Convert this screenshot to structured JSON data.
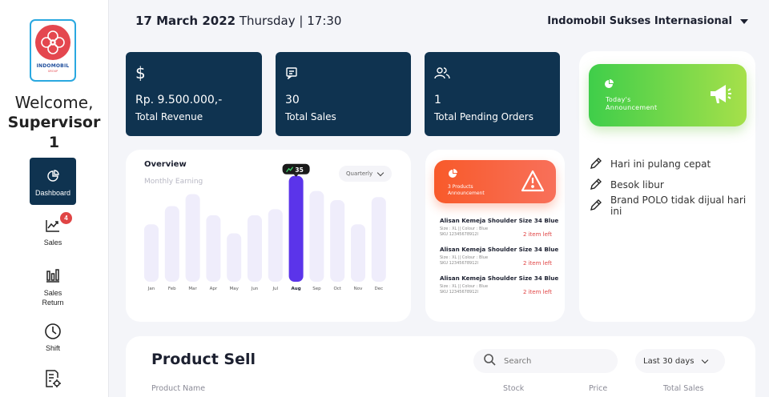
{
  "sidebar": {
    "logo": {
      "brand": "INDOMOBIL",
      "sub": "GROUP"
    },
    "welcome": "Welcome,",
    "user": "Supervisor 1",
    "items": [
      {
        "label": "Dashboard",
        "icon": "pie-chart-icon",
        "active": true
      },
      {
        "label": "Sales",
        "icon": "line-chart-icon",
        "badge": "4"
      },
      {
        "label": "Sales Return",
        "icon": "bar-chart-icon"
      },
      {
        "label": "Shift",
        "icon": "clock-icon"
      },
      {
        "label": "",
        "icon": "report-settings-icon"
      }
    ]
  },
  "header": {
    "date": "17 March 2022",
    "day": "Thursday",
    "time": "17:30",
    "company": "Indomobil Sukses Internasional"
  },
  "stats": [
    {
      "icon": "dollar-icon",
      "value": "Rp. 9.500.000,-",
      "label": "Total Revenue"
    },
    {
      "icon": "receipt-icon",
      "value": "30",
      "label": "Total Sales"
    },
    {
      "icon": "users-icon",
      "value": "1",
      "label": "Total Pending Orders"
    }
  ],
  "announcement": {
    "title_line1": "Today's",
    "title_line2": "Announcement",
    "items": [
      "Hari ini pulang cepat",
      "Besok libur",
      "Brand POLO tidak dijual hari ini"
    ]
  },
  "overview": {
    "title": "Overview",
    "subtitle": "Monthly Earning",
    "period": "Quarterly"
  },
  "chart_data": {
    "type": "bar",
    "categories": [
      "Jan",
      "Feb",
      "Mar",
      "Apr",
      "May",
      "Jun",
      "Jul",
      "Aug",
      "Sep",
      "Oct",
      "Nov",
      "Dec"
    ],
    "values": [
      19,
      25,
      29,
      22,
      16,
      22,
      24,
      35,
      30,
      27,
      19,
      28
    ],
    "highlighted": "Aug",
    "highlight_label": "35",
    "ylim": [
      0,
      36
    ],
    "grid": false,
    "colors": {
      "bar": "#efedfb",
      "highlight": "#5b34ea",
      "tooltip": "#1a1a1a"
    }
  },
  "products_announcement": {
    "title_line1": "3 Products",
    "title_line2": "Announcement",
    "items": [
      {
        "name": "Alisan Kemeja Shoulder Size 34 Blue",
        "detail": "Size : XL || Colour : Blue",
        "sku": "SKU 12345678912I",
        "stock": "2 item left"
      },
      {
        "name": "Alisan Kemeja Shoulder Size 34 Blue",
        "detail": "Size : XL || Colour : Blue",
        "sku": "SKU 12345678912I",
        "stock": "2 item left"
      },
      {
        "name": "Alisan Kemeja Shoulder Size 34 Blue",
        "detail": "Size : XL || Colour : Blue",
        "sku": "SKU 12345678912I",
        "stock": "2 item left"
      }
    ]
  },
  "product_sell": {
    "title": "Product Sell",
    "search_placeholder": "Search",
    "range": "Last 30 days",
    "columns": [
      "Product Name",
      "Stock",
      "Price",
      "Total Sales"
    ]
  }
}
